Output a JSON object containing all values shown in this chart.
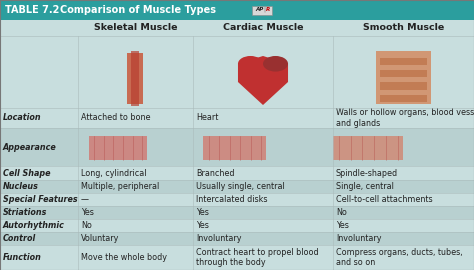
{
  "title_left": "TABLE 7.2",
  "title_right": "Comparison of Muscle Types",
  "header_bg": "#2b9e9e",
  "table_bg": "#c8dede",
  "header_text_color": "#ffffff",
  "col_headers": [
    "Skeletal Muscle",
    "Cardiac Muscle",
    "Smooth Muscle"
  ],
  "data": {
    "Location": [
      "Attached to bone",
      "Heart",
      "Walls or hollow organs, blood vessels,\nand glands"
    ],
    "Appearance": [
      "",
      "",
      ""
    ],
    "Cell Shape": [
      "Long, cylindrical",
      "Branched",
      "Spindle-shaped"
    ],
    "Nucleus": [
      "Multiple, peripheral",
      "Usually single, central",
      "Single, central"
    ],
    "Special Features": [
      "—",
      "Intercalated disks",
      "Cell-to-cell attachments"
    ],
    "Striations": [
      "Yes",
      "Yes",
      "No"
    ],
    "Autorhythmic": [
      "No",
      "Yes",
      "Yes"
    ],
    "Control": [
      "Voluntary",
      "Involuntary",
      "Involuntary"
    ],
    "Function": [
      "Move the whole body",
      "Contract heart to propel blood\nthrough the body",
      "Compress organs, ducts, tubes,\nand so on"
    ]
  },
  "title_fontsize": 7.0,
  "col_header_fontsize": 6.8,
  "data_fontsize": 5.8,
  "label_fontsize": 5.8
}
